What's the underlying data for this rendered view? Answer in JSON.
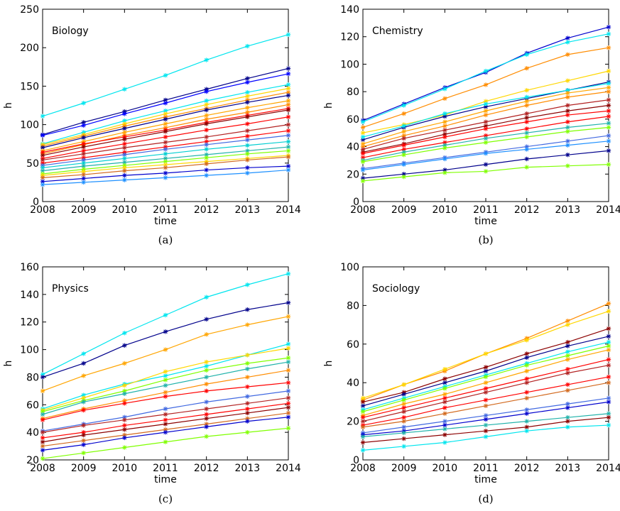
{
  "chart_data": [
    {
      "type": "line",
      "caption": "(a)",
      "title": "Biology",
      "xlabel": "time",
      "ylabel": "h",
      "x": [
        2008,
        2009,
        2010,
        2011,
        2012,
        2013,
        2014
      ],
      "xlim": [
        2008,
        2014
      ],
      "ylim": [
        0,
        250
      ],
      "yticks": [
        0,
        50,
        100,
        150,
        200,
        250
      ],
      "series": [
        {
          "color": "#00e5ee",
          "values": [
            111,
            128,
            146,
            164,
            184,
            202,
            217
          ]
        },
        {
          "color": "#00008b",
          "values": [
            87,
            103,
            117,
            132,
            146,
            160,
            173
          ]
        },
        {
          "color": "#0000ff",
          "values": [
            86,
            99,
            114,
            128,
            143,
            155,
            166
          ]
        },
        {
          "color": "#00e5ee",
          "values": [
            75,
            90,
            105,
            118,
            131,
            142,
            152
          ]
        },
        {
          "color": "#ffd700",
          "values": [
            74,
            87,
            101,
            114,
            126,
            137,
            147
          ]
        },
        {
          "color": "#ff8c00",
          "values": [
            72,
            85,
            98,
            110,
            121,
            132,
            142
          ]
        },
        {
          "color": "#00008b",
          "values": [
            70,
            83,
            95,
            107,
            119,
            129,
            138
          ]
        },
        {
          "color": "#ffa500",
          "values": [
            66,
            78,
            90,
            101,
            112,
            122,
            131
          ]
        },
        {
          "color": "#ff8c00",
          "values": [
            62,
            74,
            86,
            96,
            107,
            116,
            126
          ]
        },
        {
          "color": "#ff0000",
          "values": [
            64,
            75,
            84,
            93,
            103,
            112,
            121
          ]
        },
        {
          "color": "#8b0000",
          "values": [
            60,
            71,
            81,
            91,
            101,
            110,
            119
          ]
        },
        {
          "color": "#ff0000",
          "values": [
            56,
            66,
            75,
            84,
            93,
            101,
            110
          ]
        },
        {
          "color": "#b22222",
          "values": [
            54,
            62,
            70,
            77,
            84,
            92,
            100
          ]
        },
        {
          "color": "#ff0000",
          "values": [
            50,
            57,
            64,
            71,
            78,
            85,
            92
          ]
        },
        {
          "color": "#4169e1",
          "values": [
            47,
            54,
            61,
            68,
            74,
            80,
            86
          ]
        },
        {
          "color": "#00ced1",
          "values": [
            44,
            50,
            56,
            62,
            68,
            73,
            78
          ]
        },
        {
          "color": "#20b2aa",
          "values": [
            40,
            46,
            51,
            56,
            61,
            66,
            71
          ]
        },
        {
          "color": "#7fff00",
          "values": [
            36,
            42,
            47,
            52,
            57,
            62,
            66
          ]
        },
        {
          "color": "#ffd700",
          "values": [
            34,
            39,
            44,
            48,
            52,
            56,
            60
          ]
        },
        {
          "color": "#d2691e",
          "values": [
            31,
            35,
            40,
            44,
            49,
            54,
            58
          ]
        },
        {
          "color": "#0000cd",
          "values": [
            26,
            30,
            34,
            37,
            41,
            44,
            46
          ]
        },
        {
          "color": "#1e90ff",
          "values": [
            22,
            25,
            28,
            31,
            34,
            37,
            41
          ]
        }
      ]
    },
    {
      "type": "line",
      "caption": "(b)",
      "title": "Chemistry",
      "xlabel": "time",
      "ylabel": "h",
      "x": [
        2008,
        2009,
        2010,
        2011,
        2012,
        2013,
        2014
      ],
      "xlim": [
        2008,
        2014
      ],
      "ylim": [
        0,
        140
      ],
      "yticks": [
        0,
        20,
        40,
        60,
        80,
        100,
        120,
        140
      ],
      "series": [
        {
          "color": "#0000cd",
          "values": [
            59,
            71,
            83,
            94,
            108,
            119,
            127
          ]
        },
        {
          "color": "#00e5ee",
          "values": [
            58,
            70,
            82,
            95,
            107,
            116,
            122
          ]
        },
        {
          "color": "#ff8c00",
          "values": [
            54,
            64,
            75,
            85,
            97,
            107,
            112
          ]
        },
        {
          "color": "#ffd700",
          "values": [
            50,
            56,
            63,
            73,
            81,
            88,
            95
          ]
        },
        {
          "color": "#00008b",
          "values": [
            45,
            54,
            62,
            69,
            75,
            81,
            87
          ]
        },
        {
          "color": "#00e5ee",
          "values": [
            47,
            55,
            64,
            71,
            76,
            81,
            86
          ]
        },
        {
          "color": "#ffa500",
          "values": [
            42,
            51,
            58,
            66,
            73,
            79,
            83
          ]
        },
        {
          "color": "#ff8c00",
          "values": [
            40,
            48,
            55,
            63,
            70,
            76,
            80
          ]
        },
        {
          "color": "#b22222",
          "values": [
            38,
            46,
            52,
            58,
            64,
            70,
            74
          ]
        },
        {
          "color": "#8b0000",
          "values": [
            36,
            42,
            49,
            55,
            61,
            66,
            70
          ]
        },
        {
          "color": "#ff0000",
          "values": [
            35,
            41,
            47,
            53,
            58,
            63,
            66
          ]
        },
        {
          "color": "#ff0000",
          "values": [
            32,
            38,
            43,
            48,
            53,
            58,
            62
          ]
        },
        {
          "color": "#20b2aa",
          "values": [
            30,
            36,
            41,
            46,
            50,
            54,
            57
          ]
        },
        {
          "color": "#7fff00",
          "values": [
            29,
            34,
            39,
            43,
            47,
            51,
            54
          ]
        },
        {
          "color": "#4169e1",
          "values": [
            24,
            28,
            32,
            36,
            40,
            44,
            48
          ]
        },
        {
          "color": "#00008b",
          "values": [
            17,
            20,
            23,
            27,
            31,
            34,
            37
          ]
        },
        {
          "color": "#1e90ff",
          "values": [
            23,
            27,
            31,
            35,
            38,
            41,
            44
          ]
        },
        {
          "color": "#7fff00",
          "values": [
            15,
            18,
            21,
            22,
            25,
            26,
            27
          ]
        }
      ]
    },
    {
      "type": "line",
      "caption": "(c)",
      "title": "Physics",
      "xlabel": "time",
      "ylabel": "h",
      "x": [
        2008,
        2009,
        2010,
        2011,
        2012,
        2013,
        2014
      ],
      "xlim": [
        2008,
        2014
      ],
      "ylim": [
        20,
        160
      ],
      "yticks": [
        20,
        40,
        60,
        80,
        100,
        120,
        140,
        160
      ],
      "series": [
        {
          "color": "#00e5ee",
          "values": [
            82,
            97,
            112,
            125,
            138,
            147,
            155
          ]
        },
        {
          "color": "#00008b",
          "values": [
            80,
            90,
            103,
            113,
            122,
            129,
            134
          ]
        },
        {
          "color": "#ffa500",
          "values": [
            70,
            81,
            90,
            100,
            111,
            118,
            124
          ]
        },
        {
          "color": "#00e5ee",
          "values": [
            57,
            67,
            75,
            81,
            88,
            96,
            104
          ]
        },
        {
          "color": "#ffd700",
          "values": [
            56,
            65,
            74,
            84,
            91,
            96,
            101
          ]
        },
        {
          "color": "#7fff00",
          "values": [
            55,
            63,
            70,
            78,
            85,
            90,
            94
          ]
        },
        {
          "color": "#20b2aa",
          "values": [
            53,
            62,
            68,
            74,
            80,
            86,
            91
          ]
        },
        {
          "color": "#ff8c00",
          "values": [
            50,
            57,
            63,
            69,
            75,
            80,
            85
          ]
        },
        {
          "color": "#ff0000",
          "values": [
            49,
            56,
            61,
            66,
            70,
            73,
            76
          ]
        },
        {
          "color": "#4169e1",
          "values": [
            41,
            46,
            51,
            57,
            62,
            66,
            70
          ]
        },
        {
          "color": "#b22222",
          "values": [
            40,
            45,
            49,
            53,
            57,
            61,
            65
          ]
        },
        {
          "color": "#ff0000",
          "values": [
            36,
            40,
            45,
            49,
            53,
            57,
            61
          ]
        },
        {
          "color": "#8b0000",
          "values": [
            33,
            38,
            42,
            46,
            50,
            54,
            58
          ]
        },
        {
          "color": "#d2691e",
          "values": [
            30,
            34,
            38,
            42,
            46,
            50,
            54
          ]
        },
        {
          "color": "#0000cd",
          "values": [
            27,
            31,
            36,
            40,
            44,
            48,
            51
          ]
        },
        {
          "color": "#7fff00",
          "values": [
            21,
            25,
            29,
            33,
            37,
            40,
            43
          ]
        }
      ]
    },
    {
      "type": "line",
      "caption": "(d)",
      "title": "Sociology",
      "xlabel": "time",
      "ylabel": "h",
      "x": [
        2008,
        2009,
        2010,
        2011,
        2012,
        2013,
        2014
      ],
      "xlim": [
        2008,
        2014
      ],
      "ylim": [
        0,
        100
      ],
      "yticks": [
        0,
        20,
        40,
        60,
        80,
        100
      ],
      "series": [
        {
          "color": "#ff8c00",
          "values": [
            31,
            39,
            46,
            55,
            63,
            72,
            81
          ]
        },
        {
          "color": "#ffd700",
          "values": [
            32,
            39,
            47,
            55,
            62,
            70,
            77
          ]
        },
        {
          "color": "#8b0000",
          "values": [
            30,
            35,
            42,
            48,
            55,
            61,
            68
          ]
        },
        {
          "color": "#00008b",
          "values": [
            28,
            34,
            40,
            46,
            53,
            59,
            64
          ]
        },
        {
          "color": "#00e5ee",
          "values": [
            26,
            32,
            38,
            44,
            50,
            56,
            61
          ]
        },
        {
          "color": "#7fff00",
          "values": [
            25,
            31,
            37,
            43,
            49,
            54,
            59
          ]
        },
        {
          "color": "#ffa500",
          "values": [
            23,
            29,
            34,
            40,
            46,
            52,
            57
          ]
        },
        {
          "color": "#ff0000",
          "values": [
            22,
            27,
            32,
            37,
            42,
            47,
            52
          ]
        },
        {
          "color": "#b22222",
          "values": [
            20,
            25,
            30,
            35,
            40,
            45,
            49
          ]
        },
        {
          "color": "#ff0000",
          "values": [
            18,
            22,
            27,
            31,
            35,
            39,
            43
          ]
        },
        {
          "color": "#d2691e",
          "values": [
            17,
            20,
            24,
            28,
            32,
            36,
            40
          ]
        },
        {
          "color": "#4169e1",
          "values": [
            14,
            17,
            20,
            23,
            26,
            29,
            32
          ]
        },
        {
          "color": "#0000cd",
          "values": [
            13,
            15,
            18,
            21,
            24,
            27,
            30
          ]
        },
        {
          "color": "#20b2aa",
          "values": [
            12,
            14,
            16,
            18,
            20,
            22,
            24
          ]
        },
        {
          "color": "#8b0000",
          "values": [
            9,
            11,
            13,
            15,
            17,
            20,
            22
          ]
        },
        {
          "color": "#00e5ee",
          "values": [
            5,
            7,
            9,
            12,
            15,
            17,
            18
          ]
        }
      ]
    }
  ]
}
